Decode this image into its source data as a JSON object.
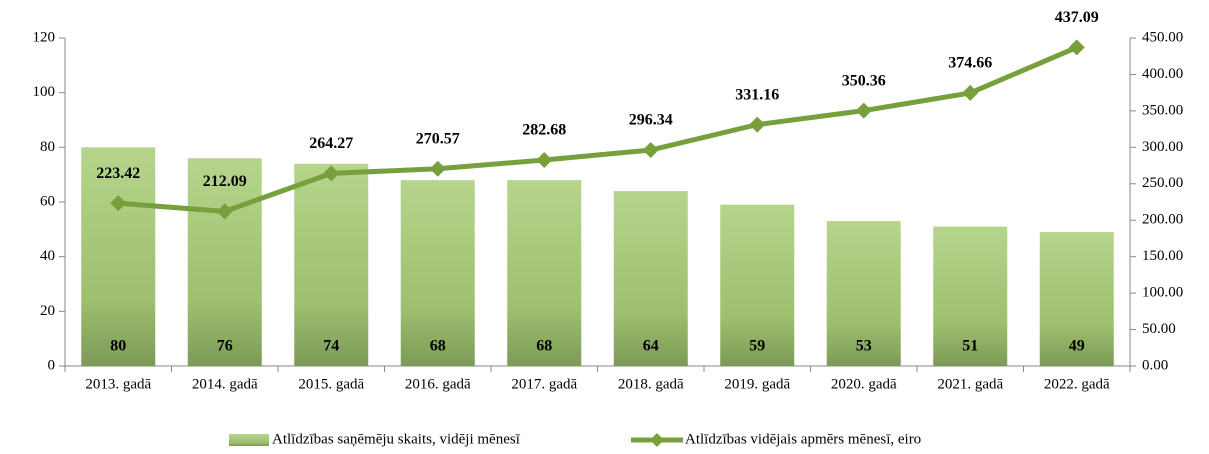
{
  "chart_data": {
    "type": "bar_line",
    "categories": [
      "2013. gadā",
      "2014. gadā",
      "2015. gadā",
      "2016. gadā",
      "2017. gadā",
      "2018. gadā",
      "2019. gadā",
      "2020. gadā",
      "2021. gadā",
      "2022. gadā"
    ],
    "series": [
      {
        "name": "Atlīdzības saņēmēju skaits, vidēji mēnesī",
        "type": "bar",
        "color": "#9dbf6e",
        "values": [
          80,
          76,
          74,
          68,
          68,
          64,
          59,
          53,
          51,
          49
        ]
      },
      {
        "name": "Atlīdzības vidējais apmērs mēnesī, eiro",
        "type": "line",
        "axis": "y2",
        "color": "#77a03c",
        "values": [
          223.42,
          212.09,
          264.27,
          270.57,
          282.68,
          296.34,
          331.16,
          350.36,
          374.66,
          437.09
        ]
      }
    ],
    "ylim": [
      0,
      120
    ],
    "yticks": [
      0,
      20,
      40,
      60,
      80,
      100,
      120
    ],
    "y2lim": [
      0,
      450
    ],
    "y2ticks": [
      {
        "value": 0,
        "label": "0.00"
      },
      {
        "value": 50,
        "label": "50.00"
      },
      {
        "value": 100,
        "label": "100.00"
      },
      {
        "value": 150,
        "label": "150.00"
      },
      {
        "value": 200,
        "label": "200.00"
      },
      {
        "value": 250,
        "label": "250.00"
      },
      {
        "value": 300,
        "label": "300.00"
      },
      {
        "value": 350,
        "label": "350.00"
      },
      {
        "value": 400,
        "label": "400.00"
      },
      {
        "value": 450,
        "label": "450.00"
      }
    ],
    "legend": "bottom"
  }
}
